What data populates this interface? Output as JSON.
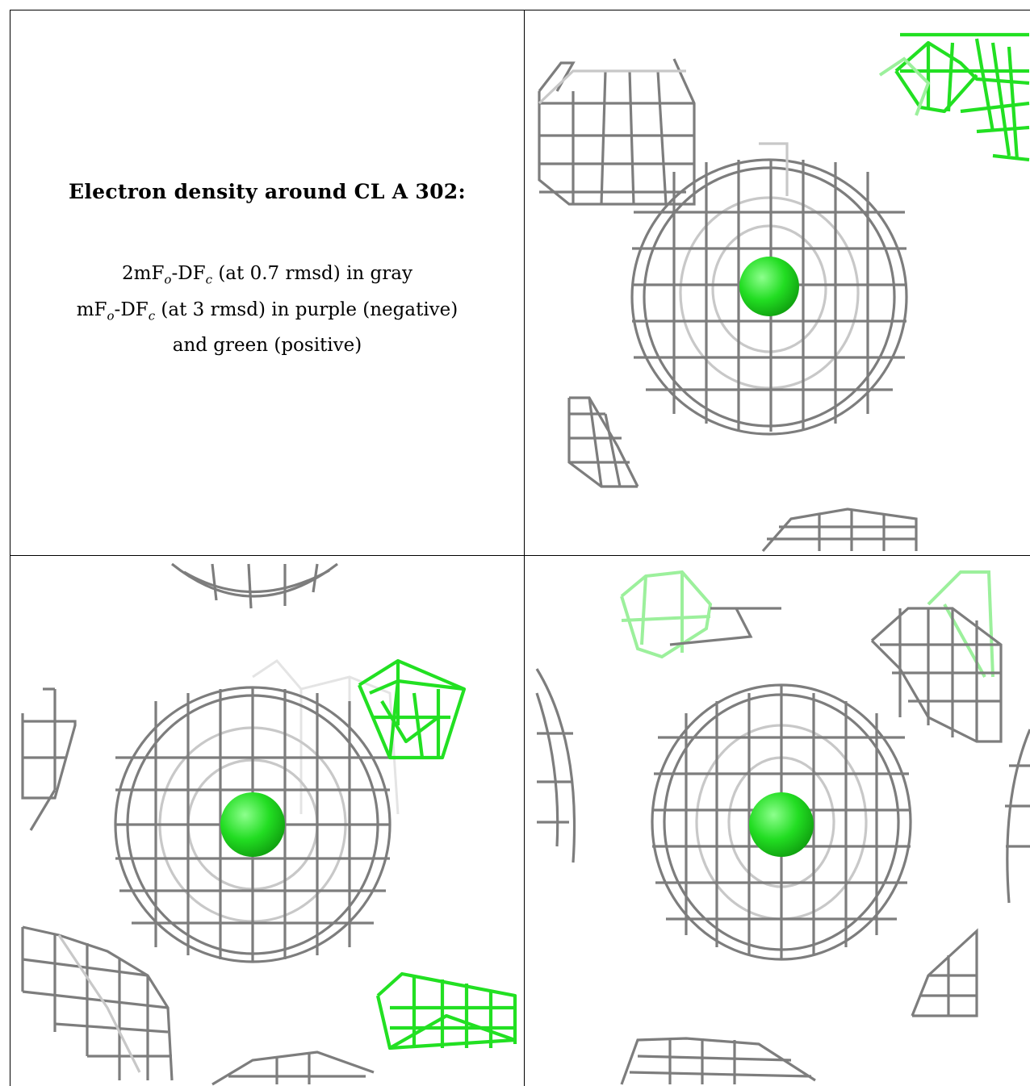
{
  "panel_text": {
    "title": "Electron density around CL A 302:",
    "line1_main": "2mF",
    "line1_sub_o": "o",
    "line1_mid": "-DF",
    "line1_sub_c": "c",
    "line1_tail": " (at 0.7 rmsd) in gray",
    "line2_main": "mF",
    "line2_sub_o": "o",
    "line2_mid": "-DF",
    "line2_sub_c": "c",
    "line2_tail": " (at 3 rmsd) in purple (negative)",
    "line3": "and green (positive)"
  },
  "colors": {
    "mesh_gray": "#7d7d7d",
    "mesh_green": "#22e022",
    "chloride_sphere": "#22dd22",
    "border": "#000000",
    "background": "#ffffff"
  },
  "views": [
    {
      "label": "view-top-right",
      "atom": "chloride-sphere"
    },
    {
      "label": "view-bottom-left",
      "atom": "chloride-sphere"
    },
    {
      "label": "view-bottom-right",
      "atom": "chloride-sphere"
    }
  ]
}
